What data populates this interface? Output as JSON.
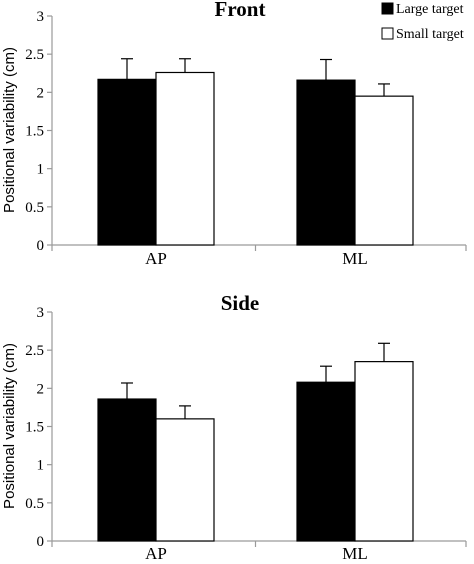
{
  "legend": [
    {
      "label": "Large target",
      "color": "#000000"
    },
    {
      "label": "Small target",
      "color": "#ffffff"
    }
  ],
  "chart_data": [
    {
      "type": "bar",
      "title": "Front",
      "ylabel": "Positional variability (cm)",
      "categories": [
        "AP",
        "ML"
      ],
      "ylim": [
        0,
        3
      ],
      "yticks": [
        "0",
        "0.5",
        "1",
        "1.5",
        "2",
        "2.5",
        "3"
      ],
      "series": [
        {
          "name": "Large target",
          "color": "#000000",
          "values": [
            2.17,
            2.16
          ],
          "errors": [
            0.27,
            0.27
          ]
        },
        {
          "name": "Small target",
          "color": "#ffffff",
          "values": [
            2.26,
            1.95
          ],
          "errors": [
            0.18,
            0.16
          ]
        }
      ],
      "legend_position": "top-right"
    },
    {
      "type": "bar",
      "title": "Side",
      "ylabel": "Positional variability (cm)",
      "categories": [
        "AP",
        "ML"
      ],
      "ylim": [
        0,
        3
      ],
      "yticks": [
        "0",
        "0.5",
        "1",
        "1.5",
        "2",
        "2.5",
        "3"
      ],
      "series": [
        {
          "name": "Large target",
          "color": "#000000",
          "values": [
            1.86,
            2.08
          ],
          "errors": [
            0.21,
            0.21
          ]
        },
        {
          "name": "Small target",
          "color": "#ffffff",
          "values": [
            1.6,
            2.35
          ],
          "errors": [
            0.17,
            0.24
          ]
        }
      ]
    }
  ]
}
